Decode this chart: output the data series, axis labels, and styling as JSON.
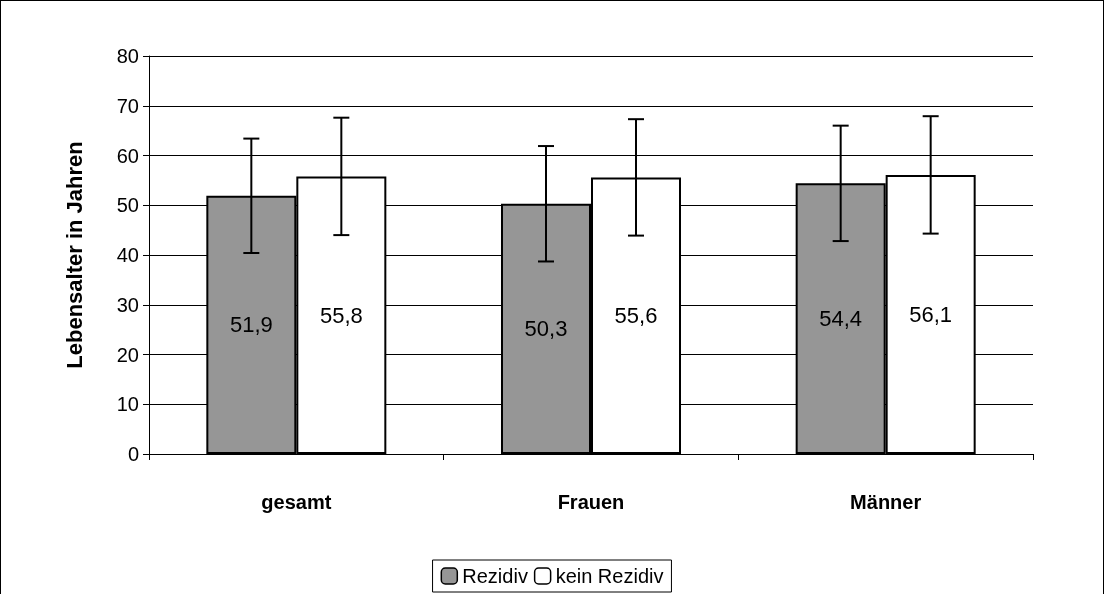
{
  "chart_data": {
    "type": "bar",
    "ylabel": "Lebensalter in Jahren",
    "categories": [
      "gesamt",
      "Frauen",
      "Männer"
    ],
    "series": [
      {
        "name": "Rezidiv",
        "color": "#969696",
        "values": [
          51.9,
          50.3,
          54.4
        ],
        "errors": [
          11.5,
          11.6,
          11.6
        ],
        "value_labels": [
          "51,9",
          "50,3",
          "54,4"
        ]
      },
      {
        "name": "kein Rezidiv",
        "color": "#ffffff",
        "values": [
          55.8,
          55.6,
          56.1
        ],
        "errors": [
          11.8,
          11.7,
          11.8
        ],
        "value_labels": [
          "55,8",
          "55,6",
          "56,1"
        ]
      }
    ],
    "ylim": [
      0,
      80
    ],
    "yticks": [
      0,
      10,
      20,
      30,
      40,
      50,
      60,
      70,
      80
    ],
    "grid": "y",
    "legend": "bottom"
  }
}
